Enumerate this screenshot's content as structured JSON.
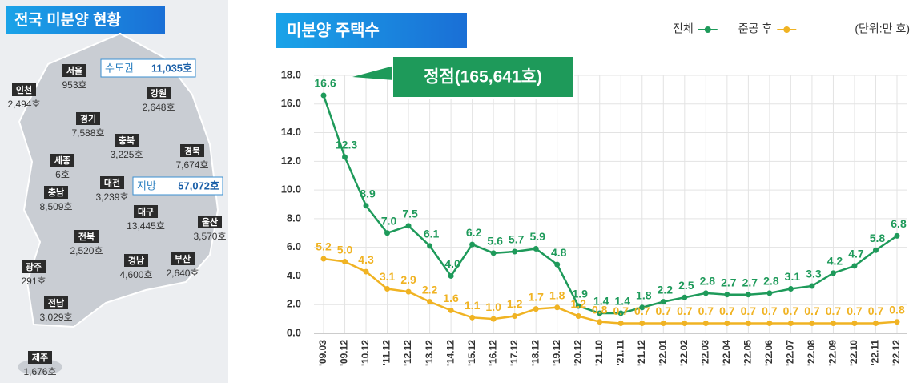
{
  "map": {
    "title": "전국 미분양 현황",
    "capital_area": {
      "name": "수도권",
      "value": "11,035호"
    },
    "provinces": {
      "name": "지방",
      "value": "57,072호"
    },
    "regions": [
      {
        "name": "서울",
        "value": "953호"
      },
      {
        "name": "인천",
        "value": "2,494호"
      },
      {
        "name": "경기",
        "value": "7,588호"
      },
      {
        "name": "강원",
        "value": "2,648호"
      },
      {
        "name": "충북",
        "value": "3,225호"
      },
      {
        "name": "경북",
        "value": "7,674호"
      },
      {
        "name": "세종",
        "value": "6호"
      },
      {
        "name": "대전",
        "value": "3,239호"
      },
      {
        "name": "충남",
        "value": "8,509호"
      },
      {
        "name": "대구",
        "value": "13,445호"
      },
      {
        "name": "울산",
        "value": "3,570호"
      },
      {
        "name": "전북",
        "value": "2,520호"
      },
      {
        "name": "경남",
        "value": "4,600호"
      },
      {
        "name": "부산",
        "value": "2,640호"
      },
      {
        "name": "광주",
        "value": "291호"
      },
      {
        "name": "전남",
        "value": "3,029호"
      },
      {
        "name": "제주",
        "value": "1,676호"
      }
    ]
  },
  "chart_data": {
    "type": "line",
    "title": "미분양 주택수",
    "unit": "(단위:만 호)",
    "annotation": "정점(165,641호)",
    "categories": [
      "'09.03",
      "'09.12",
      "'10.12",
      "'11.12",
      "'12.12",
      "'13.12",
      "'14.12",
      "'15.12",
      "'16.12",
      "'17.12",
      "'18.12",
      "'19.12",
      "'20.12",
      "'21.10",
      "'21.11",
      "'21.12",
      "'22.01",
      "'22.02",
      "'22.03",
      "'22.04",
      "'22.05",
      "'22.06",
      "'22.07",
      "'22.08",
      "'22.09",
      "'22.10",
      "'22.11",
      "'22.12"
    ],
    "series": [
      {
        "name": "전체",
        "color": "#1e9a5a",
        "values": [
          16.6,
          12.3,
          8.9,
          7.0,
          7.5,
          6.1,
          4.0,
          6.2,
          5.6,
          5.7,
          5.9,
          4.8,
          1.9,
          1.4,
          1.4,
          1.8,
          2.2,
          2.5,
          2.8,
          2.7,
          2.7,
          2.8,
          3.1,
          3.3,
          4.2,
          4.7,
          5.8,
          6.8
        ],
        "value_labels": [
          "16.6",
          "12.3",
          "8.9",
          "7.0",
          "7.5",
          "6.1",
          "4.0",
          "6.2",
          "5.6",
          "5.7",
          "5.9",
          "4.8",
          "1.9",
          "1.4",
          "1.4",
          "1.8",
          "2.2",
          "2.5",
          "2.8",
          "2.7",
          "2.7",
          "2.8",
          "3.1",
          "3.3",
          "4.2",
          "4.7",
          "5.8",
          "6.8"
        ]
      },
      {
        "name": "준공 후",
        "color": "#f0b323",
        "values": [
          5.2,
          5.0,
          4.3,
          3.1,
          2.9,
          2.2,
          1.6,
          1.1,
          1.0,
          1.2,
          1.7,
          1.8,
          1.2,
          0.8,
          0.7,
          0.7,
          0.7,
          0.7,
          0.7,
          0.7,
          0.7,
          0.7,
          0.7,
          0.7,
          0.7,
          0.7,
          0.7,
          0.8
        ],
        "value_labels": [
          "5.2",
          "5.0",
          "4.3",
          "3.1",
          "2.9",
          "2.2",
          "1.6",
          "1.1",
          "1.0",
          "1.2",
          "1.7",
          "1.8",
          "1.2",
          "0.8",
          "0.7",
          "0.7",
          "0.7",
          "0.7",
          "0.7",
          "0.7",
          "0.7",
          "0.7",
          "0.7",
          "0.7",
          "0.7",
          "0.7",
          "0.7",
          "0.8"
        ]
      }
    ],
    "ylim": [
      0,
      18
    ],
    "yticks": [
      {
        "value": 0,
        "label": "0.0"
      },
      {
        "value": 2,
        "label": "2.0"
      },
      {
        "value": 4,
        "label": "4.0"
      },
      {
        "value": 6,
        "label": "6.0"
      },
      {
        "value": 8,
        "label": "8.0"
      },
      {
        "value": 10,
        "label": "10.0"
      },
      {
        "value": 12,
        "label": "12.0"
      },
      {
        "value": 14,
        "label": "14.0"
      },
      {
        "value": 16,
        "label": "16.0"
      },
      {
        "value": 18,
        "label": "18.0"
      }
    ],
    "grid": true
  }
}
